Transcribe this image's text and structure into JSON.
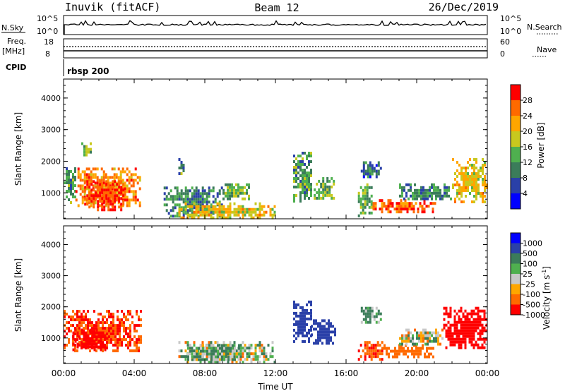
{
  "header": {
    "station": "Inuvik (fitACF)",
    "beam": "Beam 12",
    "date": "26/Dec/2019"
  },
  "panels": {
    "nsky": {
      "left_label": "N.Sky",
      "right_label": "N.Search",
      "left_ticks": [
        "10^5",
        "10^0"
      ],
      "right_ticks": [
        "10^5",
        "10^0"
      ]
    },
    "freq": {
      "left_label": "Freq.",
      "left_unit": "[MHz]",
      "right_label": "Nave",
      "left_ticks": [
        "18",
        "8"
      ],
      "right_ticks": [
        "60",
        "0"
      ]
    },
    "cpid": {
      "label": "CPID",
      "value": "rbsp 200"
    }
  },
  "colors": {
    "power_scale": [
      "#0000ff",
      "#2a40a8",
      "#3b7c5a",
      "#4fb04f",
      "#c8c81e",
      "#ffa600",
      "#ff6a00",
      "#ff0000"
    ],
    "velocity_scale": [
      "#0000ff",
      "#2a40a8",
      "#3b7c5a",
      "#4fb04f",
      "#c8c8c8",
      "#ffa600",
      "#ff6a00",
      "#ff0000"
    ]
  },
  "chart_data": [
    {
      "type": "heatmap",
      "title": "",
      "xlabel": "",
      "ylabel": "Slant Range [km]",
      "xlim": [
        "00:00",
        "00:00"
      ],
      "x_ticks": [
        "00:00",
        "04:00",
        "08:00",
        "12:00",
        "16:00",
        "20:00",
        "00:00"
      ],
      "ylim": [
        180,
        4600
      ],
      "y_ticks": [
        "1000",
        "2000",
        "3000",
        "4000"
      ],
      "colorbar": {
        "label": "Power [dB]",
        "ticks": [
          "4",
          "8",
          "12",
          "16",
          "20",
          "24",
          "28"
        ],
        "range": [
          0,
          32
        ]
      },
      "regions": [
        {
          "start": "00:00",
          "end": "00:40",
          "range": [
            650,
            1900
          ],
          "value": 12
        },
        {
          "start": "00:40",
          "end": "04:20",
          "range": [
            550,
            1800
          ],
          "value": 24
        },
        {
          "start": "01:10",
          "end": "03:20",
          "range": [
            500,
            1400
          ],
          "value": 29
        },
        {
          "start": "01:00",
          "end": "01:30",
          "range": [
            2200,
            2600
          ],
          "value": 14
        },
        {
          "start": "06:30",
          "end": "06:50",
          "range": [
            1600,
            2100
          ],
          "value": 12
        },
        {
          "start": "05:40",
          "end": "09:00",
          "range": [
            250,
            1200
          ],
          "value": 10
        },
        {
          "start": "06:30",
          "end": "12:00",
          "range": [
            250,
            700
          ],
          "value": 20
        },
        {
          "start": "09:00",
          "end": "10:30",
          "range": [
            800,
            1300
          ],
          "value": 14
        },
        {
          "start": "13:00",
          "end": "14:00",
          "range": [
            700,
            2300
          ],
          "value": 12
        },
        {
          "start": "14:10",
          "end": "15:20",
          "range": [
            800,
            1500
          ],
          "value": 14
        },
        {
          "start": "16:50",
          "end": "18:00",
          "range": [
            1500,
            2000
          ],
          "value": 8
        },
        {
          "start": "16:40",
          "end": "17:30",
          "range": [
            300,
            1300
          ],
          "value": 14
        },
        {
          "start": "17:30",
          "end": "21:00",
          "range": [
            400,
            800
          ],
          "value": 26
        },
        {
          "start": "19:00",
          "end": "22:00",
          "range": [
            800,
            1300
          ],
          "value": 10
        },
        {
          "start": "22:00",
          "end": "24:00",
          "range": [
            700,
            2100
          ],
          "value": 20
        }
      ]
    },
    {
      "type": "heatmap",
      "title": "",
      "xlabel": "Time UT",
      "ylabel": "Slant Range [km]",
      "xlim": [
        "00:00",
        "00:00"
      ],
      "x_ticks": [
        "00:00",
        "04:00",
        "08:00",
        "12:00",
        "16:00",
        "20:00",
        "00:00"
      ],
      "ylim": [
        180,
        4600
      ],
      "y_ticks": [
        "1000",
        "2000",
        "3000",
        "4000"
      ],
      "colorbar": {
        "label": "Velocity [m s^-1]",
        "ticks": [
          "1000",
          "500",
          "100",
          "25",
          "-25",
          "-100",
          "-500",
          "-1000"
        ]
      },
      "regions": [
        {
          "start": "00:00",
          "end": "04:20",
          "range": [
            550,
            1900
          ],
          "value": -300
        },
        {
          "start": "00:30",
          "end": "02:30",
          "range": [
            600,
            1300
          ],
          "value": -600
        },
        {
          "start": "06:30",
          "end": "12:00",
          "range": [
            250,
            900
          ],
          "value": 20
        },
        {
          "start": "07:00",
          "end": "10:00",
          "range": [
            300,
            800
          ],
          "value": 60
        },
        {
          "start": "13:00",
          "end": "14:00",
          "range": [
            900,
            2200
          ],
          "value": 600
        },
        {
          "start": "14:00",
          "end": "15:20",
          "range": [
            800,
            1600
          ],
          "value": 500
        },
        {
          "start": "16:50",
          "end": "18:00",
          "range": [
            1500,
            2000
          ],
          "value": 100
        },
        {
          "start": "16:40",
          "end": "18:00",
          "range": [
            300,
            900
          ],
          "value": -300
        },
        {
          "start": "18:00",
          "end": "21:00",
          "range": [
            400,
            800
          ],
          "value": -200
        },
        {
          "start": "19:00",
          "end": "21:30",
          "range": [
            800,
            1300
          ],
          "value": 20
        },
        {
          "start": "21:30",
          "end": "24:00",
          "range": [
            700,
            2000
          ],
          "value": -600
        }
      ]
    }
  ]
}
